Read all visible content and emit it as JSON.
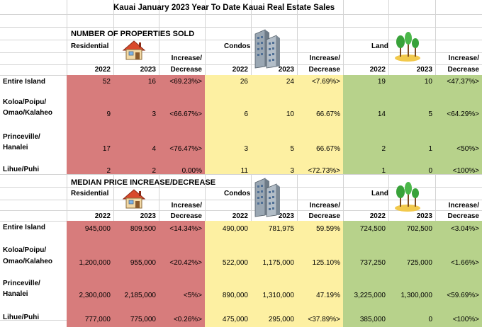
{
  "title": "Kauai January 2023 Year To Date Kauai Real Estate Sales",
  "colors": {
    "residential": "#d77c7c",
    "condos": "#fdf0a2",
    "land": "#b7d28b",
    "grid": "#d4d4d4"
  },
  "sections": [
    {
      "title": "NUMBER OF PROPERTIES SOLD",
      "category_labels": {
        "residential": "Residential",
        "condos": "Condos",
        "land": "Land"
      },
      "change_label_1": "Increase/",
      "change_label_2": "Decrease",
      "year_a": "2022",
      "year_b": "2023",
      "rows": [
        {
          "label1": "Entire Island",
          "label2": "",
          "res": [
            "52",
            "16",
            "<69.23%>"
          ],
          "con": [
            "26",
            "24",
            "<7.69%>"
          ],
          "land": [
            "19",
            "10",
            "<47.37%>"
          ]
        },
        {
          "label1": "Koloa/Poipu/",
          "label2": "Omao/Kalaheo",
          "res": [
            "9",
            "3",
            "<66.67%>"
          ],
          "con": [
            "6",
            "10",
            "66.67%"
          ],
          "land": [
            "14",
            "5",
            "<64.29%>"
          ]
        },
        {
          "label1": "Princeville/",
          "label2": "Hanalei",
          "res": [
            "17",
            "4",
            "<76.47%>"
          ],
          "con": [
            "3",
            "5",
            "66.67%"
          ],
          "land": [
            "2",
            "1",
            "<50%>"
          ]
        },
        {
          "label1": "Lihue/Puhi",
          "label2": "",
          "res": [
            "2",
            "2",
            "0.00%"
          ],
          "con": [
            "11",
            "3",
            "<72.73%>"
          ],
          "land": [
            "1",
            "0",
            "<100%>"
          ]
        }
      ]
    },
    {
      "title": "MEDIAN PRICE INCREASE/DECREASE",
      "category_labels": {
        "residential": "Residential",
        "condos": "Condos",
        "land": "Land"
      },
      "change_label_1": "Increase/",
      "change_label_2": "Decrease",
      "year_a": "2022",
      "year_b": "2023",
      "rows": [
        {
          "label1": "Entire Island",
          "label2": "",
          "res": [
            "945,000",
            "809,500",
            "<14.34%>"
          ],
          "con": [
            "490,000",
            "781,975",
            "59.59%"
          ],
          "land": [
            "724,500",
            "702,500",
            "<3.04%>"
          ]
        },
        {
          "label1": "Koloa/Poipu/",
          "label2": "Omao/Kalaheo",
          "res": [
            "1,200,000",
            "955,000",
            "<20.42%>"
          ],
          "con": [
            "522,000",
            "1,175,000",
            "125.10%"
          ],
          "land": [
            "737,250",
            "725,000",
            "<1.66%>"
          ]
        },
        {
          "label1": "Princeville/",
          "label2": "Hanalei",
          "res": [
            "2,300,000",
            "2,185,000",
            "<5%>"
          ],
          "con": [
            "890,000",
            "1,310,000",
            "47.19%"
          ],
          "land": [
            "3,225,000",
            "1,300,000",
            "<59.69%>"
          ]
        },
        {
          "label1": "Lihue/Puhi",
          "label2": "",
          "res": [
            "777,000",
            "775,000",
            "<0.26%>"
          ],
          "con": [
            "475,000",
            "295,000",
            "<37.89%>"
          ],
          "land": [
            "385,000",
            "0",
            "<100%>"
          ]
        }
      ]
    }
  ],
  "icons": [
    "house-icon",
    "condo-buildings-icon",
    "trees-icon"
  ]
}
